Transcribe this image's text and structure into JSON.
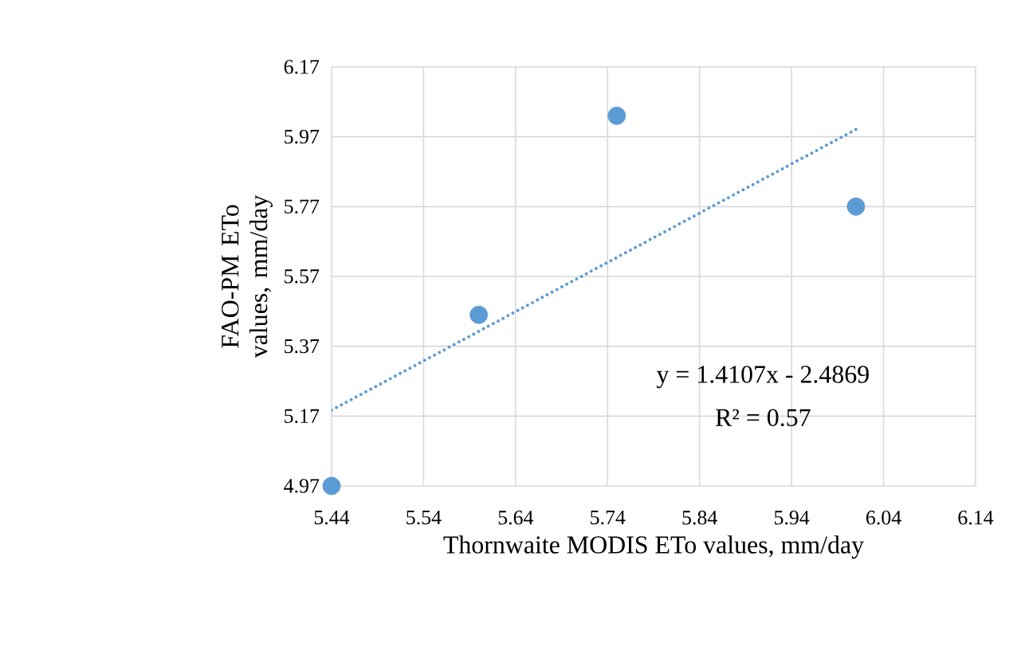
{
  "chart_data": {
    "type": "scatter",
    "xlabel": "Thornwaite MODIS ETo values, mm/day",
    "ylabel": "FAO-PM ETo values, mm/day",
    "series": [
      {
        "color": "#5b9bd5",
        "x": [
          5.44,
          5.6,
          5.75,
          6.01
        ],
        "values": [
          4.97,
          5.46,
          6.03,
          5.77
        ],
        "marker": "circle"
      },
      {
        "type": "line",
        "color": "#5b9bd5",
        "x": [
          5.44,
          6.01
        ],
        "values": [
          5.187,
          5.991
        ],
        "line_style": "dotted",
        "marker": "none"
      }
    ],
    "annotations": [
      "y = 1.4107x - 2.4869",
      "R² = 0.57"
    ],
    "xlim": [
      5.44,
      6.14
    ],
    "ylim": [
      4.97,
      6.17
    ],
    "xticks": [
      5.44,
      5.54,
      5.64,
      5.74,
      5.84,
      5.94,
      6.04,
      6.14
    ],
    "yticks": [
      4.97,
      5.17,
      5.37,
      5.57,
      5.77,
      5.97,
      6.17
    ],
    "grid": true
  }
}
